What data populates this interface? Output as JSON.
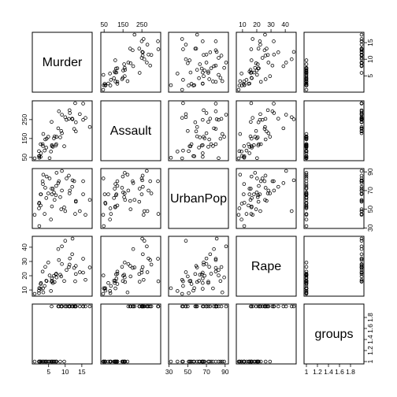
{
  "chart_data": {
    "type": "scatter",
    "subtype": "scatterplot-matrix",
    "title": "",
    "variables": [
      {
        "name": "Murder",
        "range": [
          0.8,
          17.4
        ],
        "ticks": [
          5,
          10,
          15
        ]
      },
      {
        "name": "Assault",
        "range": [
          45,
          337
        ],
        "ticks": [
          50,
          150,
          250
        ]
      },
      {
        "name": "UrbanPop",
        "range": [
          32,
          91
        ],
        "ticks": [
          30,
          50,
          70,
          90
        ]
      },
      {
        "name": "Rape",
        "range": [
          7.3,
          46
        ],
        "ticks": [
          10,
          20,
          30,
          40
        ]
      },
      {
        "name": "groups",
        "range": [
          1,
          2
        ],
        "ticks": [
          1.0,
          1.2,
          1.4,
          1.6,
          1.8
        ]
      }
    ],
    "axis_layout": {
      "top": [
        1,
        3
      ],
      "right": [
        0,
        2,
        4
      ],
      "bottom": [
        0,
        2,
        4
      ],
      "left": [
        1,
        3
      ]
    },
    "observations": {
      "Murder": [
        13.2,
        10.0,
        8.1,
        8.8,
        9.0,
        7.9,
        3.3,
        5.9,
        15.4,
        17.4,
        5.3,
        2.6,
        10.4,
        7.2,
        2.2,
        6.0,
        9.7,
        15.4,
        2.1,
        11.3,
        4.4,
        12.1,
        2.7,
        16.1,
        9.0,
        6.0,
        4.3,
        12.2,
        2.1,
        7.4,
        11.4,
        11.1,
        13.0,
        0.8,
        7.3,
        6.6,
        4.9,
        6.3,
        3.4,
        14.4,
        3.8,
        13.2,
        12.7,
        3.2,
        2.2,
        8.5,
        4.0,
        5.7,
        2.6,
        6.8
      ],
      "Assault": [
        236,
        263,
        294,
        190,
        276,
        204,
        110,
        238,
        335,
        211,
        46,
        120,
        249,
        113,
        56,
        115,
        109,
        249,
        83,
        300,
        149,
        255,
        72,
        259,
        178,
        109,
        102,
        252,
        57,
        159,
        285,
        254,
        337,
        45,
        120,
        151,
        159,
        106,
        174,
        279,
        86,
        188,
        201,
        120,
        48,
        156,
        145,
        81,
        53,
        161
      ],
      "UrbanPop": [
        58,
        48,
        80,
        50,
        91,
        78,
        77,
        72,
        80,
        60,
        83,
        54,
        83,
        65,
        57,
        66,
        52,
        66,
        51,
        67,
        85,
        74,
        66,
        44,
        70,
        53,
        62,
        81,
        56,
        89,
        70,
        86,
        45,
        44,
        75,
        68,
        67,
        72,
        87,
        48,
        45,
        59,
        80,
        80,
        32,
        63,
        73,
        39,
        66,
        60
      ],
      "Rape": [
        21.2,
        44.5,
        31.0,
        19.5,
        40.6,
        38.7,
        11.1,
        15.8,
        31.9,
        25.8,
        20.2,
        14.2,
        24.0,
        21.0,
        11.3,
        18.0,
        16.3,
        22.2,
        7.8,
        27.8,
        16.3,
        35.1,
        14.9,
        17.1,
        28.2,
        16.4,
        16.5,
        46.0,
        9.5,
        18.8,
        32.1,
        26.1,
        16.1,
        7.3,
        21.4,
        20.0,
        29.3,
        14.9,
        8.3,
        22.5,
        12.8,
        26.9,
        25.5,
        22.9,
        11.2,
        20.7,
        26.2,
        9.3,
        10.8,
        15.6
      ],
      "groups": [
        2,
        2,
        2,
        2,
        2,
        2,
        1,
        2,
        2,
        2,
        1,
        1,
        2,
        1,
        1,
        1,
        1,
        2,
        1,
        2,
        1,
        2,
        1,
        2,
        2,
        1,
        1,
        2,
        1,
        1,
        2,
        2,
        2,
        1,
        1,
        1,
        1,
        1,
        1,
        2,
        1,
        2,
        2,
        1,
        1,
        1,
        1,
        1,
        1,
        1
      ]
    }
  }
}
